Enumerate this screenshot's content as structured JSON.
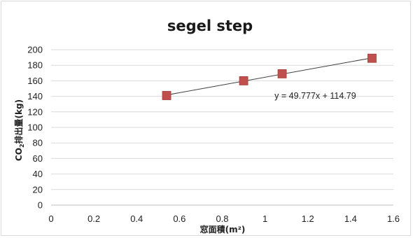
{
  "chart_data": {
    "type": "scatter",
    "title": "segel step",
    "xlabel": "窓面積(m²)",
    "ylabel_parts": [
      "CO",
      "2",
      "排出量(kg)"
    ],
    "xlim": [
      0,
      1.6
    ],
    "ylim": [
      0,
      200
    ],
    "x_ticks": [
      "0",
      "0.2",
      "0.4",
      "0.6",
      "0.8",
      "1",
      "1.2",
      "1.4",
      "1.6"
    ],
    "y_ticks": [
      "0",
      "20",
      "40",
      "60",
      "80",
      "100",
      "120",
      "140",
      "160",
      "180",
      "200"
    ],
    "grid": "horizontal",
    "legend": "none",
    "series": [
      {
        "x": [
          0.54,
          0.9,
          1.08,
          1.5
        ],
        "y": [
          141,
          160,
          169,
          189
        ],
        "marker": "square",
        "color": "#c0504d"
      }
    ],
    "trendline": {
      "slope": 49.777,
      "intercept": 114.79,
      "x_range": [
        0.54,
        1.5
      ],
      "color": "#404040",
      "label": "y = 49.777x + 114.79"
    }
  }
}
